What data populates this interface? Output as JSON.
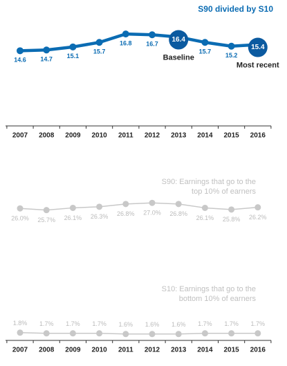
{
  "chart_data": [
    {
      "type": "line",
      "title": [
        "S90 divided by S10"
      ],
      "categories": [
        "2007",
        "2008",
        "2009",
        "2010",
        "2011",
        "2012",
        "2013",
        "2014",
        "2015",
        "2016"
      ],
      "values": [
        14.6,
        14.7,
        15.1,
        15.7,
        16.8,
        16.7,
        16.4,
        15.7,
        15.2,
        15.4
      ],
      "color": "#0b6cb3",
      "annotations": [
        {
          "index": 6,
          "text": "Baseline"
        },
        {
          "index": 9,
          "text": "Most recent"
        }
      ]
    },
    {
      "type": "line",
      "title": [
        "S90: Earnings that go to the",
        "top 10% of earners"
      ],
      "values": [
        26.0,
        25.7,
        26.1,
        26.3,
        26.8,
        27.0,
        26.8,
        26.1,
        25.8,
        26.2
      ],
      "value_labels": [
        "26.0%",
        "25.7%",
        "26.1%",
        "26.3%",
        "26.8%",
        "27.0%",
        "26.8%",
        "26.1%",
        "25.8%",
        "26.2%"
      ],
      "color": "#c8c8c8"
    },
    {
      "type": "line",
      "title": [
        "S10: Earnings that go to the",
        "bottom 10% of earners"
      ],
      "categories": [
        "2007",
        "2008",
        "2009",
        "2010",
        "2011",
        "2012",
        "2013",
        "2014",
        "2015",
        "2016"
      ],
      "values": [
        1.8,
        1.7,
        1.7,
        1.7,
        1.6,
        1.6,
        1.6,
        1.7,
        1.7,
        1.7
      ],
      "value_labels": [
        "1.8%",
        "1.7%",
        "1.7%",
        "1.7%",
        "1.6%",
        "1.6%",
        "1.6%",
        "1.7%",
        "1.7%",
        "1.7%"
      ],
      "color": "#c8c8c8"
    }
  ]
}
